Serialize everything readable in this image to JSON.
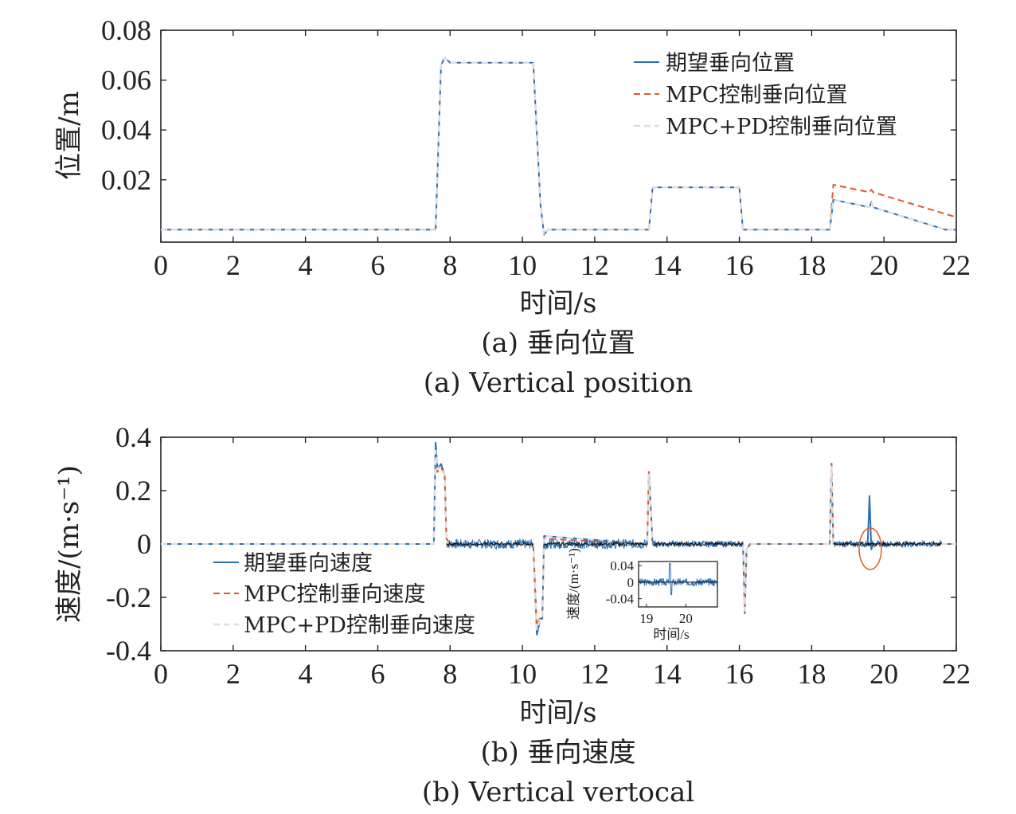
{
  "chart_data": [
    {
      "type": "line",
      "title": "",
      "xlabel": "时间/s",
      "ylabel": "位置/m",
      "caption_cn": "(a) 垂向位置",
      "caption_en": "(a) Vertical position",
      "xlim": [
        0,
        22
      ],
      "ylim": [
        -0.005,
        0.08
      ],
      "xticks": [
        "0",
        "2",
        "4",
        "6",
        "8",
        "10",
        "12",
        "14",
        "16",
        "18",
        "20",
        "22"
      ],
      "yticks": [
        "0.02",
        "0.04",
        "0.06",
        "0.08"
      ],
      "ytick_values": [
        0.02,
        0.04,
        0.06,
        0.08
      ],
      "legend_position": "top-right",
      "series": [
        {
          "name": "期望垂向位置",
          "color": "#2a6fb5",
          "style": "solid",
          "x": [
            0,
            7.6,
            7.75,
            7.85,
            8,
            9,
            10.3,
            10.5,
            10.6,
            10.7,
            13.5,
            13.6,
            16,
            16.1,
            16.2,
            18.5,
            18.6,
            19.6,
            19.65,
            19.7,
            21.7,
            22
          ],
          "y": [
            0,
            0,
            0.066,
            0.069,
            0.067,
            0.067,
            0.067,
            0.01,
            -0.002,
            0,
            0,
            0.017,
            0.017,
            0,
            0,
            0,
            0.012,
            0.009,
            0.011,
            0.009,
            0,
            0
          ]
        },
        {
          "name": "MPC控制垂向位置",
          "color": "#e05a2a",
          "style": "dashed",
          "x": [
            0,
            7.6,
            7.75,
            7.85,
            8,
            9,
            10.3,
            10.5,
            10.6,
            10.7,
            13.5,
            13.6,
            16,
            16.1,
            16.2,
            18.5,
            18.6,
            19.6,
            19.65,
            19.7,
            22
          ],
          "y": [
            0,
            0,
            0.066,
            0.069,
            0.067,
            0.067,
            0.067,
            0.01,
            -0.002,
            0,
            0,
            0.017,
            0.017,
            0,
            0,
            0,
            0.018,
            0.015,
            0.016,
            0.015,
            0.005
          ]
        },
        {
          "name": "MPC+PD控制垂向位置",
          "color": "#dddddd",
          "style": "dashed",
          "x": [
            0,
            7.6,
            7.75,
            7.85,
            8,
            9,
            10.3,
            10.5,
            10.6,
            10.7,
            13.5,
            13.6,
            16,
            16.1,
            16.2,
            18.5,
            18.6,
            19.6,
            19.65,
            19.7,
            21.7,
            22
          ],
          "y": [
            0,
            0,
            0.066,
            0.069,
            0.067,
            0.067,
            0.067,
            0.01,
            -0.002,
            0,
            0,
            0.017,
            0.017,
            0,
            0,
            0,
            0.012,
            0.009,
            0.011,
            0.009,
            0,
            0
          ]
        }
      ]
    },
    {
      "type": "line",
      "title": "",
      "xlabel": "时间/s",
      "ylabel": "速度/(m·s⁻¹)",
      "caption_cn": "(b) 垂向速度",
      "caption_en": "(b) Vertical vertocal",
      "xlim": [
        0,
        22
      ],
      "ylim": [
        -0.4,
        0.4
      ],
      "xticks": [
        "0",
        "2",
        "4",
        "6",
        "8",
        "10",
        "12",
        "14",
        "16",
        "18",
        "20",
        "22"
      ],
      "yticks": [
        "-0.4",
        "-0.2",
        "0",
        "0.2",
        "0.4"
      ],
      "ytick_values": [
        -0.4,
        -0.2,
        0,
        0.2,
        0.4
      ],
      "legend_position": "bottom-left",
      "series": [
        {
          "name": "期望垂向速度",
          "color": "#2a6fb5",
          "style": "solid",
          "x": [
            0,
            7.55,
            7.6,
            7.65,
            7.75,
            7.85,
            7.9,
            8,
            10.3,
            10.4,
            10.5,
            10.55,
            10.6,
            13.45,
            13.5,
            13.6,
            13.7,
            16.1,
            16.15,
            16.2,
            16.3,
            18.5,
            18.55,
            18.6,
            18.7,
            19.55,
            19.6,
            19.65,
            19.7,
            21.6,
            22
          ],
          "y": [
            0,
            0,
            0.38,
            0.28,
            0.3,
            0.26,
            0.02,
            0,
            0,
            -0.34,
            -0.28,
            -0.28,
            0.03,
            0,
            0.27,
            0,
            0,
            0,
            -0.26,
            -0.02,
            0,
            0,
            0.3,
            0,
            0,
            0,
            0.18,
            -0.02,
            0,
            0,
            0
          ]
        },
        {
          "name": "MPC控制垂向速度",
          "color": "#e05a2a",
          "style": "dashed",
          "x": [
            0,
            7.55,
            7.6,
            7.65,
            7.75,
            7.85,
            7.9,
            8,
            10.3,
            10.4,
            10.5,
            10.55,
            10.6,
            13.45,
            13.5,
            13.6,
            13.7,
            16.1,
            16.15,
            16.2,
            16.3,
            18.5,
            18.55,
            18.6,
            18.7,
            22
          ],
          "y": [
            0,
            0,
            0.33,
            0.27,
            0.29,
            0.25,
            0.02,
            0,
            0,
            -0.31,
            -0.27,
            -0.27,
            0.02,
            0,
            0.27,
            0,
            0,
            0,
            -0.25,
            -0.02,
            0,
            0,
            0.31,
            0,
            0,
            0
          ]
        },
        {
          "name": "MPC+PD控制垂向速度",
          "color": "#dddddd",
          "style": "dashed",
          "x": [
            0,
            7.55,
            7.6,
            7.65,
            7.75,
            7.85,
            7.9,
            8,
            10.3,
            10.4,
            10.5,
            10.55,
            10.6,
            13.45,
            13.5,
            13.6,
            13.7,
            16.1,
            16.15,
            16.2,
            16.3,
            18.5,
            18.55,
            18.6,
            18.7,
            22
          ],
          "y": [
            0,
            0,
            0.35,
            0.28,
            0.29,
            0.26,
            0.02,
            0,
            0,
            -0.32,
            -0.28,
            -0.28,
            0.03,
            0,
            0.26,
            0,
            0,
            0,
            -0.25,
            -0.02,
            0,
            0,
            0.29,
            0,
            0,
            0
          ]
        }
      ],
      "inset": {
        "ylabel": "速度/(m·s⁻¹)",
        "xlabel": "时间/s",
        "xlim": [
          18.8,
          20.8
        ],
        "ylim": [
          -0.06,
          0.05
        ],
        "xticks": [
          "19",
          "20"
        ],
        "xtick_values": [
          19,
          20
        ],
        "yticks": [
          "0.04",
          "0",
          "-0.04"
        ],
        "ytick_values": [
          0.04,
          0,
          -0.04
        ]
      }
    }
  ]
}
